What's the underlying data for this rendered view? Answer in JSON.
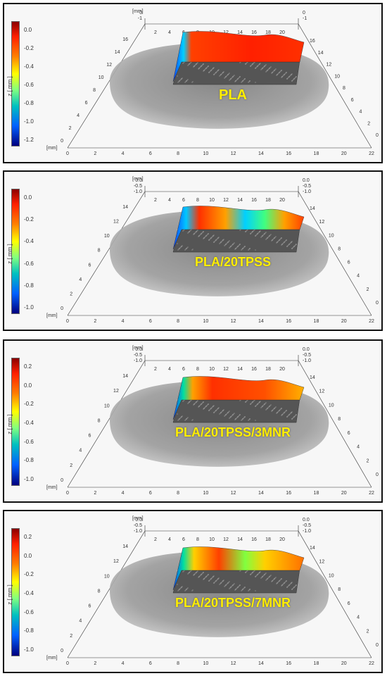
{
  "panels": [
    {
      "name": "PLA",
      "label": "PLA",
      "unit": "[mm]",
      "colorbar_title": "z [ mm ]",
      "colorbar_ticks": [
        "0.0",
        "-0.2",
        "-0.4",
        "-0.6",
        "-0.8",
        "-1.0",
        "-1.2"
      ],
      "x_ticks": [
        "0",
        "2",
        "4",
        "6",
        "8",
        "10",
        "12",
        "14",
        "16",
        "18",
        "20",
        "22"
      ],
      "y_ticks": [
        "0",
        "2",
        "4",
        "6",
        "8",
        "10",
        "12",
        "14",
        "16"
      ],
      "top_x_ticks": [
        "2",
        "4",
        "6",
        "8",
        "10",
        "12",
        "14",
        "16",
        "18",
        "20"
      ],
      "z_ticks_left": [
        "0",
        "-1"
      ],
      "z_ticks_right": [
        "0",
        "-1"
      ]
    },
    {
      "name": "PLA-20TPSS",
      "label": "PLA/20TPSS",
      "unit": "[mm]",
      "colorbar_title": "z [ mm ]",
      "colorbar_ticks": [
        "0.0",
        "-0.2",
        "-0.4",
        "-0.6",
        "-0.8",
        "-1.0"
      ],
      "x_ticks": [
        "0",
        "2",
        "4",
        "6",
        "8",
        "10",
        "12",
        "14",
        "16",
        "18",
        "20",
        "22"
      ],
      "y_ticks": [
        "0",
        "2",
        "4",
        "6",
        "8",
        "10",
        "12",
        "14"
      ],
      "top_x_ticks": [
        "2",
        "4",
        "6",
        "8",
        "10",
        "12",
        "14",
        "16",
        "18",
        "20"
      ],
      "z_ticks_left": [
        "0.0",
        "-0.5",
        "-1.0"
      ],
      "z_ticks_right": [
        "0.0",
        "-0.5",
        "-1.0"
      ]
    },
    {
      "name": "PLA-20TPSS-3MNR",
      "label": "PLA/20TPSS/3MNR",
      "unit": "[mm]",
      "colorbar_title": "z [ mm ]",
      "colorbar_ticks": [
        "0.2",
        "0.0",
        "-0.2",
        "-0.4",
        "-0.6",
        "-0.8",
        "-1.0"
      ],
      "x_ticks": [
        "0",
        "2",
        "4",
        "6",
        "8",
        "10",
        "12",
        "14",
        "16",
        "18",
        "20",
        "22"
      ],
      "y_ticks": [
        "0",
        "2",
        "4",
        "6",
        "8",
        "10",
        "12",
        "14"
      ],
      "top_x_ticks": [
        "2",
        "4",
        "6",
        "8",
        "10",
        "12",
        "14",
        "16",
        "18",
        "20"
      ],
      "z_ticks_left": [
        "0.0",
        "-0.5",
        "-1.0"
      ],
      "z_ticks_right": [
        "0.0",
        "-0.5",
        "-1.0"
      ]
    },
    {
      "name": "PLA-20TPSS-7MNR",
      "label": "PLA/20TPSS/7MNR",
      "unit": "[mm]",
      "colorbar_title": "z [ mm ]",
      "colorbar_ticks": [
        "0.2",
        "0.0",
        "-0.2",
        "-0.4",
        "-0.6",
        "-0.8",
        "-1.0"
      ],
      "x_ticks": [
        "0",
        "2",
        "4",
        "6",
        "8",
        "10",
        "12",
        "14",
        "16",
        "18",
        "20",
        "22"
      ],
      "y_ticks": [
        "0",
        "2",
        "4",
        "6",
        "8",
        "10",
        "12",
        "14"
      ],
      "top_x_ticks": [
        "2",
        "4",
        "6",
        "8",
        "10",
        "12",
        "14",
        "16",
        "18",
        "20"
      ],
      "z_ticks_left": [
        "0.0",
        "-0.5",
        "-1.0"
      ],
      "z_ticks_right": [
        "0.0",
        "-0.5",
        "-1.0"
      ]
    }
  ],
  "colors": {
    "colorbar_top": "#8b0000",
    "colorbar_mid": "#ffff00",
    "colorbar_low": "#00c0c0",
    "colorbar_bottom": "#00007f",
    "label_yellow": "#ffee00",
    "blob_gray": "#8a8a8a"
  }
}
